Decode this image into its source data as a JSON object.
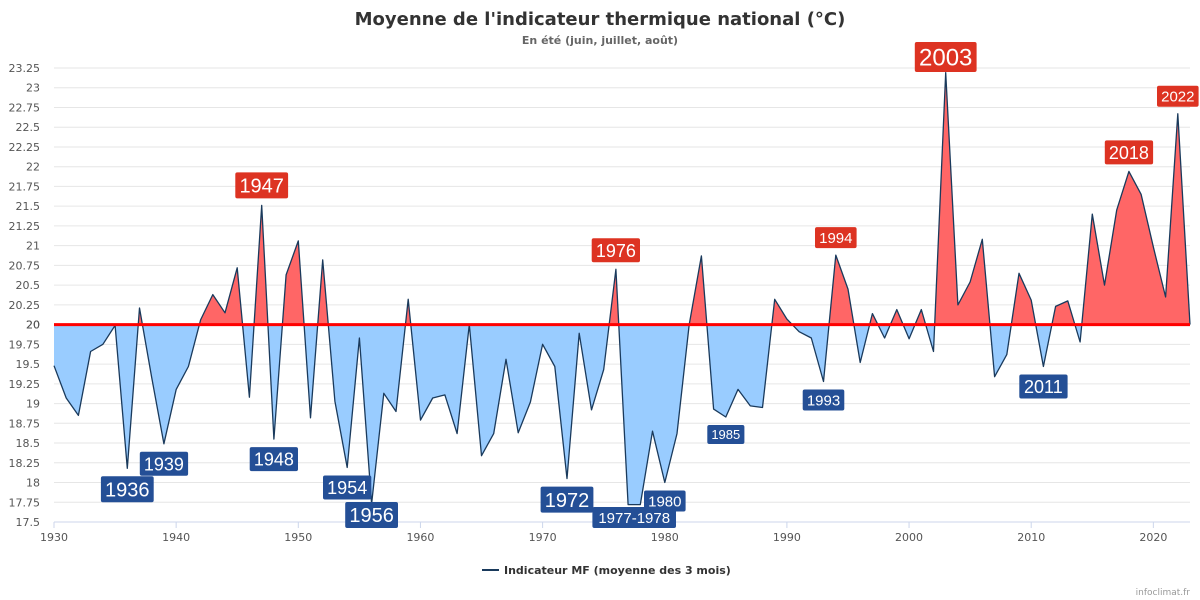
{
  "chart_data": {
    "type": "area",
    "title": "Moyenne de l'indicateur thermique national (°C)",
    "subtitle": "En été (juin, juillet, août)",
    "reference_line": {
      "value": 20,
      "color": "#ff0000"
    },
    "x_range": [
      1930,
      2023
    ],
    "ylim": [
      17.5,
      23.5
    ],
    "y_ticks": [
      17.5,
      17.75,
      18,
      18.25,
      18.5,
      18.75,
      19,
      19.25,
      19.5,
      19.75,
      20,
      20.25,
      20.5,
      20.75,
      21,
      21.25,
      21.5,
      21.75,
      22,
      22.25,
      22.5,
      22.75,
      23,
      23.25
    ],
    "x_ticks": [
      1930,
      1940,
      1950,
      1960,
      1970,
      1980,
      1990,
      2000,
      2010,
      2020
    ],
    "grid": true,
    "legend_position": "bottom",
    "colors": {
      "line": "#1a3a5c",
      "above": "#ff6666",
      "below": "#99ccff",
      "label_hot": "#dd3322",
      "label_cold": "#244f96"
    },
    "series": [
      {
        "name": "Indicateur MF (moyenne des 3 mois)",
        "x": [
          1930,
          1931,
          1932,
          1933,
          1934,
          1935,
          1936,
          1937,
          1938,
          1939,
          1940,
          1941,
          1942,
          1943,
          1944,
          1945,
          1946,
          1947,
          1948,
          1949,
          1950,
          1951,
          1952,
          1953,
          1954,
          1955,
          1956,
          1957,
          1958,
          1959,
          1960,
          1961,
          1962,
          1963,
          1964,
          1965,
          1966,
          1967,
          1968,
          1969,
          1970,
          1971,
          1972,
          1973,
          1974,
          1975,
          1976,
          1977,
          1978,
          1979,
          1980,
          1981,
          1982,
          1983,
          1984,
          1985,
          1986,
          1987,
          1988,
          1989,
          1990,
          1991,
          1992,
          1993,
          1994,
          1995,
          1996,
          1997,
          1998,
          1999,
          2000,
          2001,
          2002,
          2003,
          2004,
          2005,
          2006,
          2007,
          2008,
          2009,
          2010,
          2011,
          2012,
          2013,
          2014,
          2015,
          2016,
          2017,
          2018,
          2019,
          2020,
          2021,
          2022,
          2023
        ],
        "values": [
          19.48,
          19.07,
          18.85,
          19.66,
          19.75,
          19.99,
          18.18,
          20.21,
          19.33,
          18.49,
          19.18,
          19.47,
          20.06,
          20.38,
          20.15,
          20.72,
          19.08,
          21.51,
          18.55,
          20.63,
          21.06,
          18.82,
          20.82,
          19.03,
          18.19,
          19.83,
          17.73,
          19.13,
          18.9,
          20.32,
          18.79,
          19.07,
          19.11,
          18.62,
          20.0,
          18.34,
          18.62,
          19.56,
          18.63,
          19.02,
          19.75,
          19.47,
          18.05,
          19.89,
          18.92,
          19.43,
          20.7,
          17.72,
          17.72,
          18.65,
          18.0,
          18.62,
          20.0,
          20.87,
          18.93,
          18.83,
          19.18,
          18.97,
          18.95,
          20.32,
          20.07,
          19.91,
          19.83,
          19.28,
          20.88,
          20.45,
          19.52,
          20.14,
          19.83,
          20.19,
          19.82,
          20.19,
          19.66,
          23.19,
          20.25,
          20.54,
          21.08,
          19.34,
          19.62,
          20.65,
          20.31,
          19.47,
          20.23,
          20.3,
          19.78,
          21.4,
          20.5,
          21.45,
          21.94,
          21.65,
          20.98,
          20.35,
          22.67,
          20.0
        ]
      }
    ],
    "annotations": [
      {
        "label": "1936",
        "year": 1936,
        "value": 18.18,
        "kind": "cold",
        "size": "lg"
      },
      {
        "label": "1939",
        "year": 1939,
        "value": 18.49,
        "kind": "cold",
        "size": "md"
      },
      {
        "label": "1947",
        "year": 1947,
        "value": 21.51,
        "kind": "hot",
        "size": "lg"
      },
      {
        "label": "1948",
        "year": 1948,
        "value": 18.55,
        "kind": "cold",
        "size": "md"
      },
      {
        "label": "1954",
        "year": 1954,
        "value": 18.19,
        "kind": "cold",
        "size": "md"
      },
      {
        "label": "1956",
        "year": 1956,
        "value": 17.73,
        "kind": "cold",
        "size": "lg"
      },
      {
        "label": "1972",
        "year": 1972,
        "value": 18.05,
        "kind": "cold",
        "size": "lg"
      },
      {
        "label": "1976",
        "year": 1976,
        "value": 20.7,
        "kind": "hot",
        "size": "md"
      },
      {
        "label": "1977-1978",
        "year": 1977.5,
        "value": 17.72,
        "kind": "cold",
        "size": "sm"
      },
      {
        "label": "1980",
        "year": 1980,
        "value": 18.0,
        "kind": "cold",
        "size": "sm"
      },
      {
        "label": "1985",
        "year": 1985,
        "value": 18.83,
        "kind": "cold",
        "size": "xs"
      },
      {
        "label": "1993",
        "year": 1993,
        "value": 19.28,
        "kind": "cold",
        "size": "sm"
      },
      {
        "label": "1994",
        "year": 1994,
        "value": 20.88,
        "kind": "hot",
        "size": "sm"
      },
      {
        "label": "2003",
        "year": 2003,
        "value": 23.19,
        "kind": "hot",
        "size": "xl"
      },
      {
        "label": "2011",
        "year": 2011,
        "value": 19.47,
        "kind": "cold",
        "size": "md"
      },
      {
        "label": "2018",
        "year": 2018,
        "value": 21.94,
        "kind": "hot",
        "size": "md"
      },
      {
        "label": "2022",
        "year": 2022,
        "value": 22.67,
        "kind": "hot",
        "size": "sm"
      }
    ]
  },
  "legend": {
    "label": "Indicateur MF (moyenne des 3 mois)"
  },
  "credit": "infoclimat.fr"
}
